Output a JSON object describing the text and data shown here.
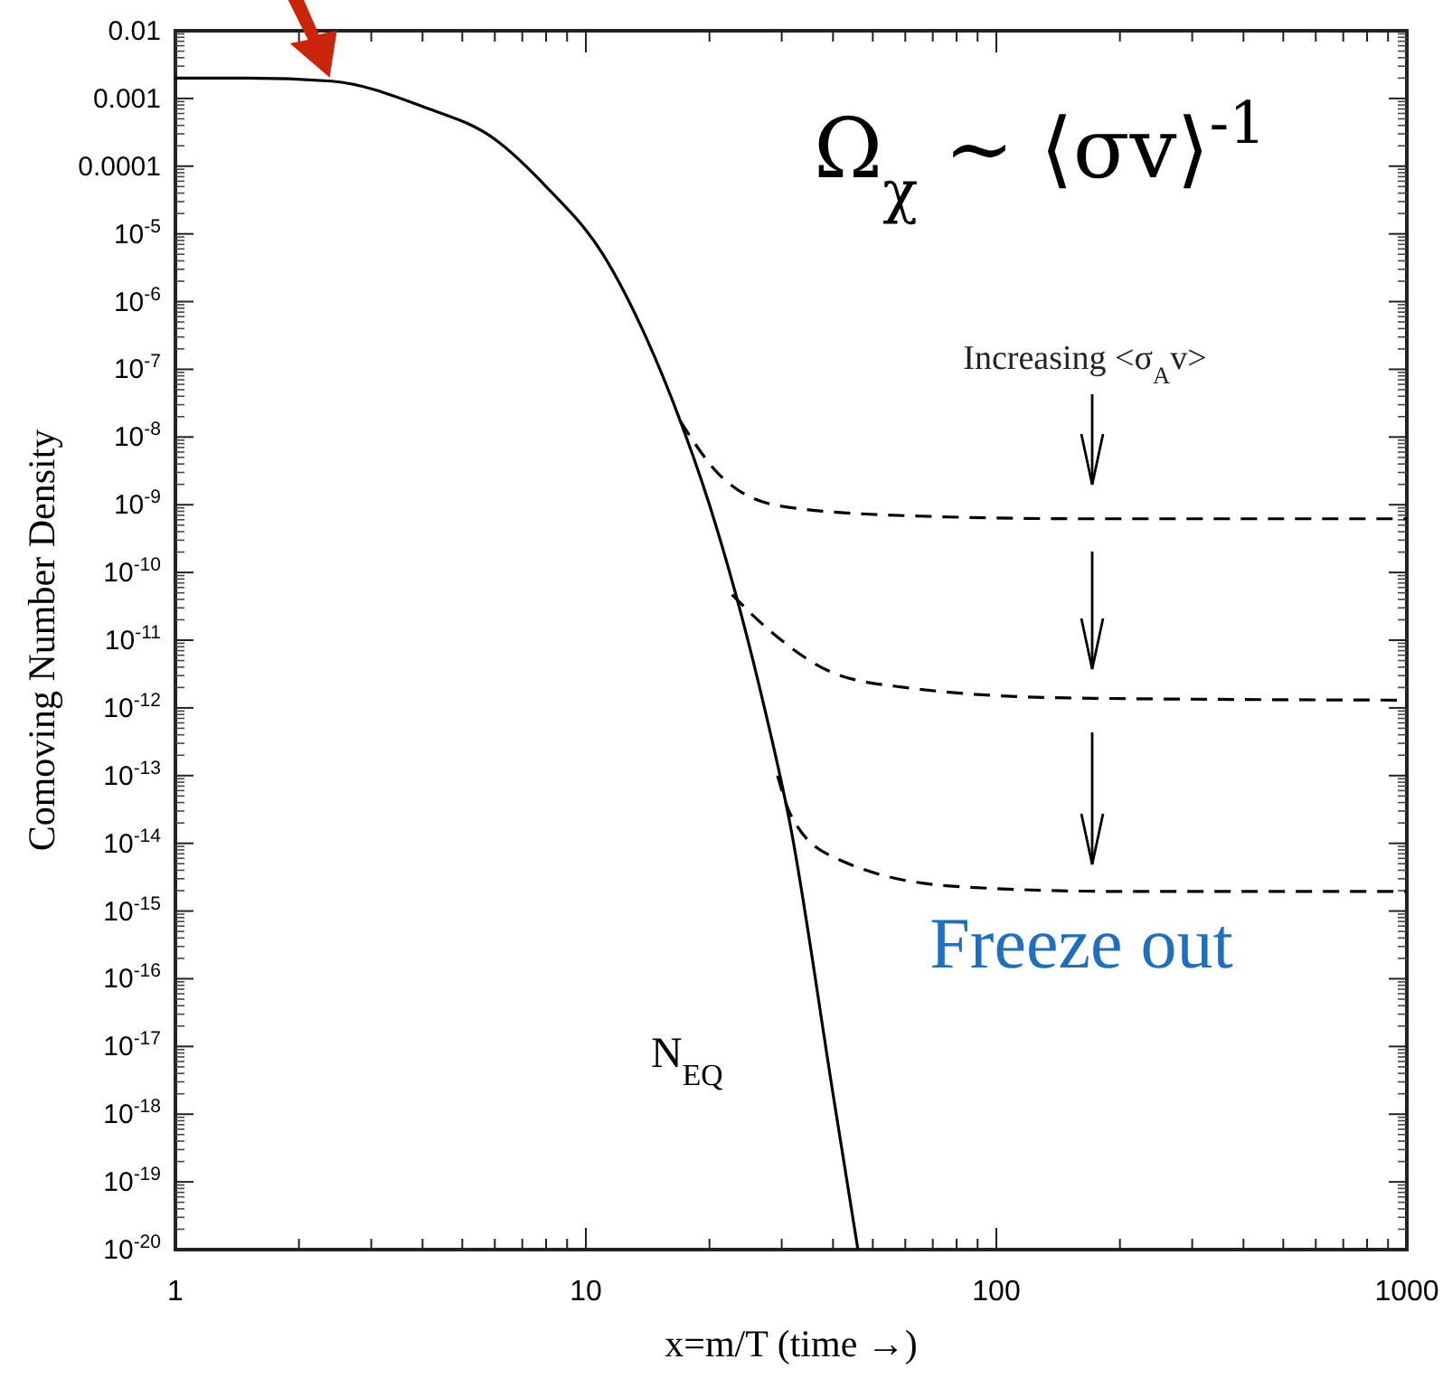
{
  "chart_data": {
    "type": "line",
    "xlabel": "x=m/T (time →)",
    "ylabel": "Comoving Number Density",
    "log": "xy",
    "grid": false,
    "xlim": [
      1,
      1000
    ],
    "xticks": [
      1,
      10,
      100,
      1000
    ],
    "ylim": [
      1e-20,
      0.01
    ],
    "yticks": [
      0.01,
      0.001,
      0.0001,
      {
        "value": 1e-05,
        "label": "10$^{-5}$"
      },
      {
        "value": 1e-06,
        "label": "10$^{-6}$"
      },
      {
        "value": 1e-07,
        "label": "10$^{-7}$"
      },
      {
        "value": 1e-08,
        "label": "10$^{-8}$"
      },
      {
        "value": 1e-09,
        "label": "10$^{-9}$"
      },
      {
        "value": 1e-10,
        "label": "10$^{-10}$"
      },
      {
        "value": 1e-11,
        "label": "10$^{-11}$"
      },
      {
        "value": 1e-12,
        "label": "10$^{-12}$"
      },
      {
        "value": 1e-13,
        "label": "10$^{-13}$"
      },
      {
        "value": 1e-14,
        "label": "10$^{-14}$"
      },
      {
        "value": 1e-15,
        "label": "10$^{-15}$"
      },
      {
        "value": 1e-16,
        "label": "10$^{-16}$"
      },
      {
        "value": 1e-17,
        "label": "10$^{-17}$"
      },
      {
        "value": 1e-18,
        "label": "10$^{-18}$"
      },
      {
        "value": 1e-19,
        "label": "10$^{-19}$"
      },
      {
        "value": 1e-20,
        "label": "10$^{-20}$"
      }
    ],
    "series": [
      {
        "name": "N$_{EQ}$",
        "color": "#000000",
        "line_style": "solid",
        "x": [
          1,
          1.5,
          2.4,
          4,
          6,
          8,
          11,
          14,
          17,
          20,
          26.5,
          31.5,
          40,
          46
        ],
        "values": [
          0.002,
          0.002,
          0.0018,
          0.00076,
          0.00025,
          5e-05,
          5e-06,
          3e-07,
          1.7e-08,
          1e-09,
          2e-12,
          1.8e-14,
          2e-18,
          1e-20
        ]
      },
      {
        "color": "#000000",
        "line_style": "dashed",
        "x": [
          17,
          21,
          30,
          60,
          170,
          1000
        ],
        "values": [
          1.7e-08,
          2.9e-09,
          9.5e-10,
          6.9e-10,
          6.2e-10,
          6.2e-10
        ]
      },
      {
        "color": "#000000",
        "line_style": "dashed",
        "x": [
          22.7,
          28,
          40,
          60,
          150,
          1000
        ],
        "values": [
          4.7e-11,
          1.4e-11,
          3.3e-12,
          2e-12,
          1.4e-12,
          1.3e-12
        ]
      },
      {
        "color": "#000000",
        "line_style": "dashed",
        "x": [
          29.3,
          31.5,
          40,
          80,
          200,
          1000
        ],
        "values": [
          1e-13,
          2.7e-14,
          6.3e-15,
          2.3e-15,
          1.95e-15,
          1.95e-15
        ]
      }
    ],
    "annotations": [
      "Ω$_{χ}$ ∼ ⟨σv⟩$^{-1}$",
      "Increasing <σ$_{A}$v>",
      "Freeze out"
    ]
  }
}
